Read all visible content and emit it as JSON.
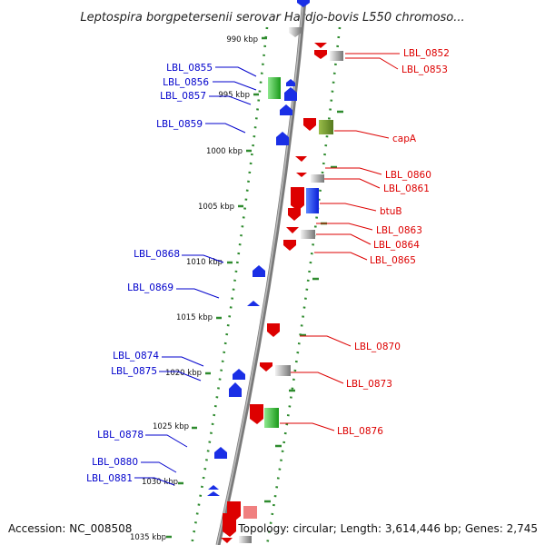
{
  "title": "Leptospira borgpetersenii serovar Hardjo-bovis L550 chromoso...",
  "footer": {
    "accession": "Accession: NC_008508",
    "summary": "Topology: circular; Length: 3,614,446 bp; Genes: 2,745"
  },
  "colors": {
    "forward_label": "#0000cc",
    "reverse_label": "#dd0000",
    "tick_green": "#2e8b2e",
    "backbone": "#888888"
  },
  "kbp_ticks": [
    "990 kbp",
    "995 kbp",
    "1000 kbp",
    "1005 kbp",
    "1010 kbp",
    "1015 kbp",
    "1020 kbp",
    "1025 kbp",
    "1030 kbp",
    "1035 kbp"
  ],
  "left_labels": [
    "LBL_0855",
    "LBL_0856",
    "LBL_0857",
    "LBL_0859",
    "LBL_0868",
    "LBL_0869",
    "LBL_0874",
    "LBL_0875",
    "LBL_0878",
    "LBL_0880",
    "LBL_0881"
  ],
  "right_labels": [
    "LBL_0852",
    "LBL_0853",
    "capA",
    "LBL_0860",
    "LBL_0861",
    "btuB",
    "LBL_0863",
    "LBL_0864",
    "LBL_0865",
    "LBL_0870",
    "LBL_0873",
    "LBL_0876"
  ]
}
